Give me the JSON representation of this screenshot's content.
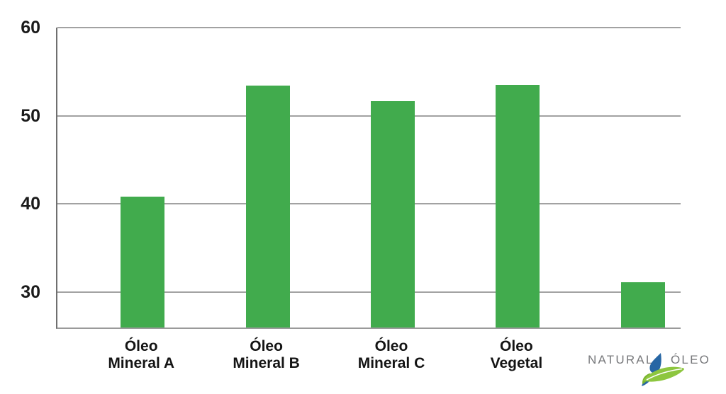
{
  "page": {
    "background": "#ffffff"
  },
  "chart_data": {
    "type": "bar",
    "title": "",
    "xlabel": "",
    "ylabel": "",
    "categories": [
      "Óleo Mineral A",
      "Óleo Mineral B",
      "Óleo Mineral C",
      "Óleo Vegetal",
      "Natural Óleo"
    ],
    "category_lines": [
      [
        "Óleo",
        "Mineral A"
      ],
      [
        "Óleo",
        "Mineral B"
      ],
      [
        "Óleo",
        "Mineral C"
      ],
      [
        "Óleo",
        "Vegetal"
      ],
      [
        "",
        ""
      ]
    ],
    "values": [
      40.8,
      53.4,
      51.7,
      53.5,
      31.1
    ],
    "yticks": [
      30,
      40,
      50,
      60
    ],
    "ylim": [
      26,
      60
    ],
    "grid": true,
    "legend": "none",
    "bar_color": "#41ab4d",
    "gridline_color": "#a2a2a2",
    "axis_color": "#6f6f6f",
    "tick_label_color": "#1b1b1b"
  },
  "logo": {
    "word1": "NATURAL",
    "word2": "ÓLEO",
    "text_color": "#77787b",
    "leaf_green": "#8dc63f",
    "leaf_dark_green": "#79b32e",
    "leaf_blue": "#2766a4"
  }
}
